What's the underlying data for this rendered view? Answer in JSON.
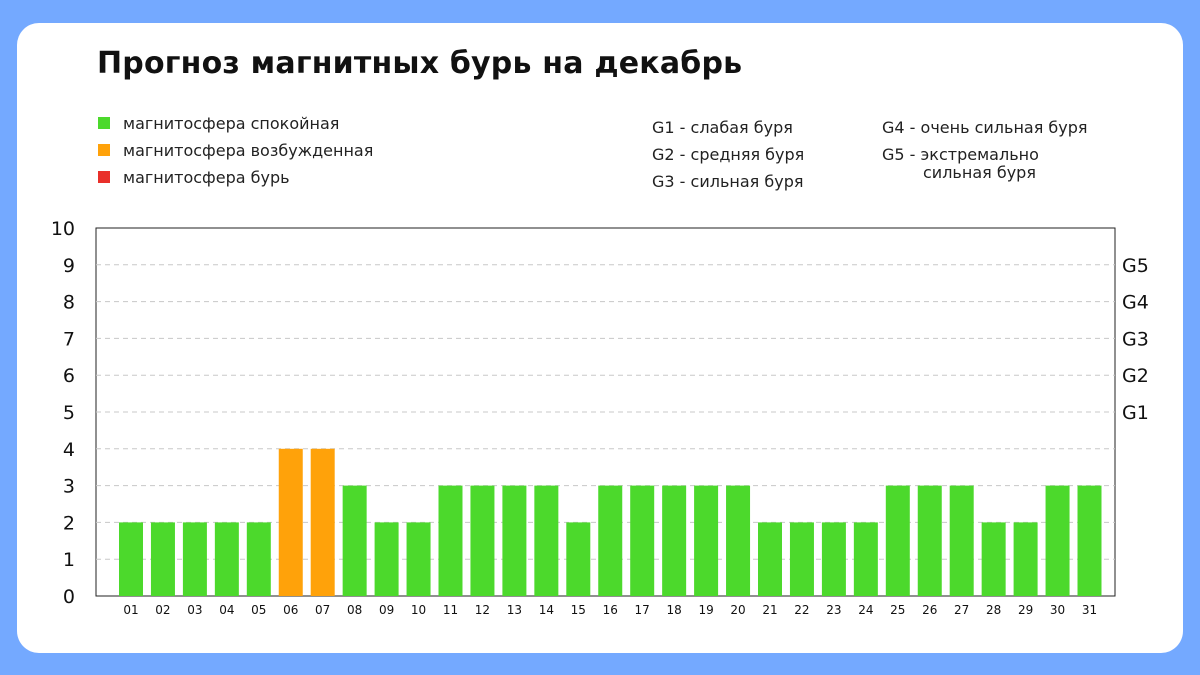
{
  "title": "Прогноз магнитных бурь на декабрь",
  "legend": [
    {
      "label": "магнитосфера спокойная",
      "color": "#4cd92c"
    },
    {
      "label": "магнитосфера возбужденная",
      "color": "#ffa20a"
    },
    {
      "label": "магнитосфера бурь",
      "color": "#e9302a"
    }
  ],
  "g_descriptions": {
    "g1": "G1 - слабая буря",
    "g2": "G2 - средняя буря",
    "g3": "G3 - сильная буря",
    "g4": "G4 - очень сильная буря",
    "g5_line1": "G5 - экстремально",
    "g5_line2": "сильная буря"
  },
  "chart_data": {
    "type": "bar",
    "title": "Прогноз магнитных бурь на декабрь",
    "categories": [
      "01",
      "02",
      "03",
      "04",
      "05",
      "06",
      "07",
      "08",
      "09",
      "10",
      "11",
      "12",
      "13",
      "14",
      "15",
      "16",
      "17",
      "18",
      "19",
      "20",
      "21",
      "22",
      "23",
      "24",
      "25",
      "26",
      "27",
      "28",
      "29",
      "30",
      "31"
    ],
    "values": [
      2,
      2,
      2,
      2,
      2,
      4,
      4,
      3,
      2,
      2,
      3,
      3,
      3,
      3,
      2,
      3,
      3,
      3,
      3,
      3,
      2,
      2,
      2,
      2,
      3,
      3,
      3,
      2,
      2,
      3,
      3
    ],
    "bar_colors": [
      "#4cd92c",
      "#4cd92c",
      "#4cd92c",
      "#4cd92c",
      "#4cd92c",
      "#ffa20a",
      "#ffa20a",
      "#4cd92c",
      "#4cd92c",
      "#4cd92c",
      "#4cd92c",
      "#4cd92c",
      "#4cd92c",
      "#4cd92c",
      "#4cd92c",
      "#4cd92c",
      "#4cd92c",
      "#4cd92c",
      "#4cd92c",
      "#4cd92c",
      "#4cd92c",
      "#4cd92c",
      "#4cd92c",
      "#4cd92c",
      "#4cd92c",
      "#4cd92c",
      "#4cd92c",
      "#4cd92c",
      "#4cd92c",
      "#4cd92c",
      "#4cd92c"
    ],
    "ylim": [
      0,
      10
    ],
    "y_ticks": [
      0,
      1,
      2,
      3,
      4,
      5,
      6,
      7,
      8,
      9,
      10
    ],
    "right_axis_labels": [
      {
        "label": "G1",
        "value": 5
      },
      {
        "label": "G2",
        "value": 6
      },
      {
        "label": "G3",
        "value": 7
      },
      {
        "label": "G4",
        "value": 8
      },
      {
        "label": "G5",
        "value": 9
      }
    ],
    "grid": true,
    "legend_position": "top-left",
    "xlabel": "",
    "ylabel": ""
  }
}
